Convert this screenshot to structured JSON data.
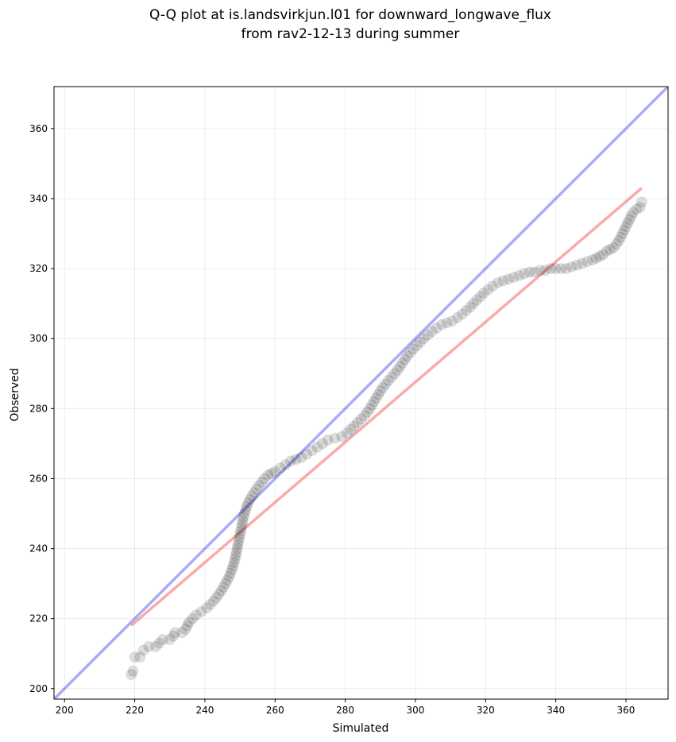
{
  "chart_data": {
    "type": "scatter",
    "title_lines": [
      "Q-Q plot at is.landsvirkjun.l01 for downward_longwave_flux",
      "from rav2-12-13 during summer"
    ],
    "xlabel": "Simulated",
    "ylabel": "Observed",
    "xlim": [
      197,
      372
    ],
    "ylim": [
      197,
      372
    ],
    "xticks": [
      200,
      220,
      240,
      260,
      280,
      300,
      320,
      340,
      360
    ],
    "yticks": [
      200,
      220,
      240,
      260,
      280,
      300,
      320,
      340,
      360
    ],
    "grid": true,
    "reference_line": {
      "label": "1:1 line",
      "color": "#0000ee",
      "opacity": 0.33
    },
    "fit_line": {
      "x": [
        219,
        364.5
      ],
      "y": [
        218,
        343
      ],
      "color": "#ee0000",
      "opacity": 0.33
    },
    "point_color": "#000000",
    "quantile_points": [
      [
        219.0,
        204.0
      ],
      [
        219.5,
        205.0
      ],
      [
        220.0,
        209.0
      ],
      [
        221.5,
        209.0
      ],
      [
        222.5,
        211.0
      ],
      [
        224.0,
        212.0
      ],
      [
        226.0,
        212.0
      ],
      [
        227.0,
        213.0
      ],
      [
        228.0,
        214.0
      ],
      [
        230.0,
        214.0
      ],
      [
        231.0,
        215.0
      ],
      [
        231.5,
        216.0
      ],
      [
        233.5,
        216.0
      ],
      [
        234.5,
        217.0
      ],
      [
        235.0,
        218.0
      ],
      [
        235.5,
        219.0
      ],
      [
        236.5,
        220.0
      ],
      [
        237.5,
        221.0
      ],
      [
        239.0,
        222.0
      ],
      [
        240.5,
        223.0
      ],
      [
        241.5,
        224.0
      ],
      [
        242.5,
        225.0
      ],
      [
        243.3,
        226.0
      ],
      [
        244.0,
        227.0
      ],
      [
        244.7,
        228.0
      ],
      [
        245.3,
        229.0
      ],
      [
        245.9,
        230.0
      ],
      [
        246.4,
        231.0
      ],
      [
        246.9,
        232.0
      ],
      [
        247.3,
        233.0
      ],
      [
        247.7,
        234.0
      ],
      [
        248.0,
        235.0
      ],
      [
        248.3,
        236.0
      ],
      [
        248.6,
        237.0
      ],
      [
        248.8,
        238.0
      ],
      [
        249.0,
        239.0
      ],
      [
        249.2,
        240.0
      ],
      [
        249.4,
        241.0
      ],
      [
        249.6,
        242.0
      ],
      [
        249.8,
        243.0
      ],
      [
        250.0,
        244.0
      ],
      [
        250.2,
        245.0
      ],
      [
        250.4,
        246.0
      ],
      [
        250.6,
        247.0
      ],
      [
        250.8,
        248.0
      ],
      [
        251.0,
        249.0
      ],
      [
        251.3,
        250.0
      ],
      [
        251.6,
        251.0
      ],
      [
        251.9,
        252.0
      ],
      [
        252.3,
        253.0
      ],
      [
        252.8,
        254.0
      ],
      [
        253.4,
        255.0
      ],
      [
        254.0,
        256.0
      ],
      [
        254.7,
        257.0
      ],
      [
        255.4,
        258.0
      ],
      [
        256.2,
        259.0
      ],
      [
        257.0,
        260.0
      ],
      [
        258.0,
        261.0
      ],
      [
        259.0,
        261.5
      ],
      [
        260.0,
        262.0
      ],
      [
        261.5,
        263.0
      ],
      [
        263.0,
        264.0
      ],
      [
        264.5,
        265.0
      ],
      [
        266.0,
        265.5
      ],
      [
        267.5,
        266.0
      ],
      [
        269.0,
        267.0
      ],
      [
        270.5,
        268.0
      ],
      [
        272.0,
        269.0
      ],
      [
        273.5,
        270.0
      ],
      [
        275.0,
        271.0
      ],
      [
        277.0,
        271.5
      ],
      [
        279.0,
        272.0
      ],
      [
        280.5,
        273.0
      ],
      [
        281.5,
        274.0
      ],
      [
        282.5,
        275.0
      ],
      [
        283.5,
        276.0
      ],
      [
        284.5,
        277.0
      ],
      [
        285.5,
        278.0
      ],
      [
        286.3,
        279.0
      ],
      [
        287.0,
        280.0
      ],
      [
        287.6,
        281.0
      ],
      [
        288.2,
        282.0
      ],
      [
        288.8,
        283.0
      ],
      [
        289.4,
        284.0
      ],
      [
        290.0,
        285.0
      ],
      [
        290.7,
        286.0
      ],
      [
        291.5,
        287.0
      ],
      [
        292.3,
        288.0
      ],
      [
        293.2,
        289.0
      ],
      [
        294.1,
        290.0
      ],
      [
        294.9,
        291.0
      ],
      [
        295.6,
        292.0
      ],
      [
        296.3,
        293.0
      ],
      [
        297.0,
        294.0
      ],
      [
        297.7,
        295.0
      ],
      [
        298.5,
        296.0
      ],
      [
        299.4,
        297.0
      ],
      [
        300.4,
        298.0
      ],
      [
        301.4,
        299.0
      ],
      [
        302.4,
        300.0
      ],
      [
        303.5,
        301.0
      ],
      [
        304.7,
        302.0
      ],
      [
        306.0,
        303.0
      ],
      [
        307.5,
        304.0
      ],
      [
        309.0,
        304.5
      ],
      [
        310.5,
        305.0
      ],
      [
        312.0,
        306.0
      ],
      [
        313.3,
        307.0
      ],
      [
        314.5,
        308.0
      ],
      [
        315.6,
        309.0
      ],
      [
        316.5,
        310.0
      ],
      [
        317.5,
        311.0
      ],
      [
        318.5,
        312.0
      ],
      [
        319.5,
        313.0
      ],
      [
        320.7,
        314.0
      ],
      [
        322.0,
        315.0
      ],
      [
        323.5,
        316.0
      ],
      [
        325.0,
        316.5
      ],
      [
        326.5,
        317.0
      ],
      [
        328.0,
        317.5
      ],
      [
        329.5,
        318.0
      ],
      [
        331.0,
        318.5
      ],
      [
        332.5,
        319.0
      ],
      [
        334.0,
        319.0
      ],
      [
        335.5,
        319.5
      ],
      [
        337.0,
        319.5
      ],
      [
        338.5,
        320.0
      ],
      [
        340.0,
        320.0
      ],
      [
        341.5,
        320.0
      ],
      [
        343.0,
        320.0
      ],
      [
        344.5,
        320.5
      ],
      [
        346.0,
        321.0
      ],
      [
        347.5,
        321.5
      ],
      [
        349.0,
        322.0
      ],
      [
        350.5,
        322.5
      ],
      [
        351.5,
        323.0
      ],
      [
        352.5,
        323.5
      ],
      [
        353.5,
        324.0
      ],
      [
        354.5,
        325.0
      ],
      [
        355.5,
        325.5
      ],
      [
        356.5,
        326.0
      ],
      [
        357.3,
        327.0
      ],
      [
        358.0,
        328.0
      ],
      [
        358.5,
        329.0
      ],
      [
        359.0,
        330.0
      ],
      [
        359.5,
        331.0
      ],
      [
        360.0,
        332.0
      ],
      [
        360.5,
        333.0
      ],
      [
        361.0,
        334.0
      ],
      [
        361.5,
        335.0
      ],
      [
        362.0,
        336.0
      ],
      [
        363.0,
        337.0
      ],
      [
        364.0,
        337.5
      ],
      [
        364.5,
        339.0
      ]
    ]
  }
}
